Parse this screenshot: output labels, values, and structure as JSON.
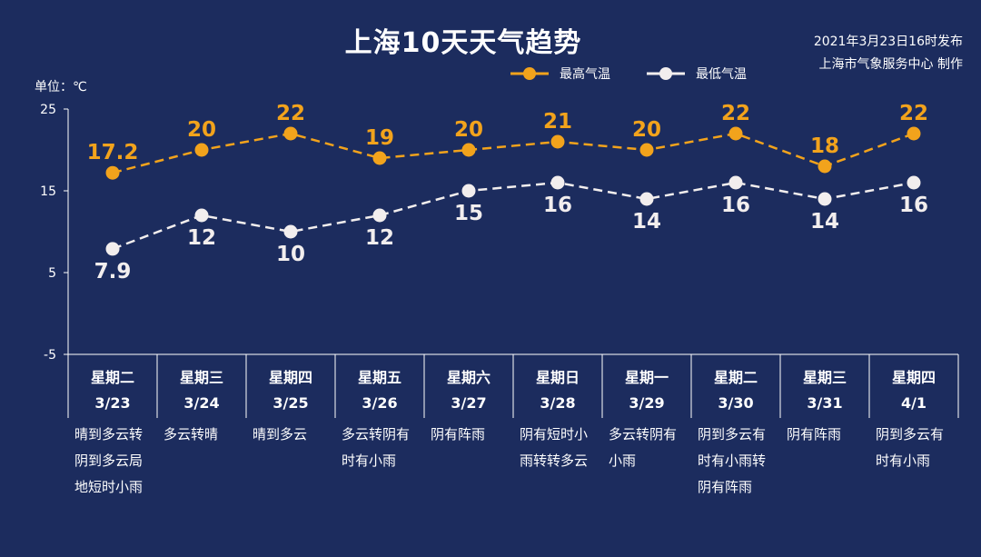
{
  "header": {
    "title": "上海10天天气趋势",
    "published": "2021年3月23日16时发布",
    "producer": "上海市气象服务中心 制作",
    "unit": "单位：℃"
  },
  "colors": {
    "background": "#1c2c5e",
    "high": "#f2a31c",
    "low": "#f2eeee",
    "axis": "#ffffff"
  },
  "chart_data": {
    "type": "line",
    "title": "上海10天天气趋势",
    "ylim": [
      -5,
      25
    ],
    "yticks": [
      25,
      15,
      5,
      -5
    ],
    "grid": false,
    "legend_position": "top",
    "categories": [
      {
        "weekday": "星期二",
        "date": "3/23",
        "weather": [
          "晴到多云转",
          "阴到多云局",
          "地短时小雨"
        ]
      },
      {
        "weekday": "星期三",
        "date": "3/24",
        "weather": [
          "多云转晴"
        ]
      },
      {
        "weekday": "星期四",
        "date": "3/25",
        "weather": [
          "晴到多云"
        ]
      },
      {
        "weekday": "星期五",
        "date": "3/26",
        "weather": [
          "多云转阴有",
          "时有小雨"
        ]
      },
      {
        "weekday": "星期六",
        "date": "3/27",
        "weather": [
          "阴有阵雨"
        ]
      },
      {
        "weekday": "星期日",
        "date": "3/28",
        "weather": [
          "阴有短时小",
          "雨转转多云"
        ]
      },
      {
        "weekday": "星期一",
        "date": "3/29",
        "weather": [
          "多云转阴有",
          "小雨"
        ]
      },
      {
        "weekday": "星期二",
        "date": "3/30",
        "weather": [
          "阴到多云有",
          "时有小雨转",
          "阴有阵雨"
        ]
      },
      {
        "weekday": "星期三",
        "date": "3/31",
        "weather": [
          "阴有阵雨"
        ]
      },
      {
        "weekday": "星期四",
        "date": "4/1",
        "weather": [
          "阴到多云有",
          "时有小雨"
        ]
      }
    ],
    "series": [
      {
        "name": "最高气温",
        "labels": [
          "17.2",
          "20",
          "22",
          "19",
          "20",
          "21",
          "20",
          "22",
          "18",
          "22"
        ],
        "values": [
          17.2,
          20,
          22,
          19,
          20,
          21,
          20,
          22,
          18,
          22
        ]
      },
      {
        "name": "最低气温",
        "labels": [
          "7.9",
          "12",
          "10",
          "12",
          "15",
          "16",
          "14",
          "16",
          "14",
          "16"
        ],
        "values": [
          7.9,
          12,
          10,
          12,
          15,
          16,
          14,
          16,
          14,
          16
        ]
      }
    ]
  }
}
